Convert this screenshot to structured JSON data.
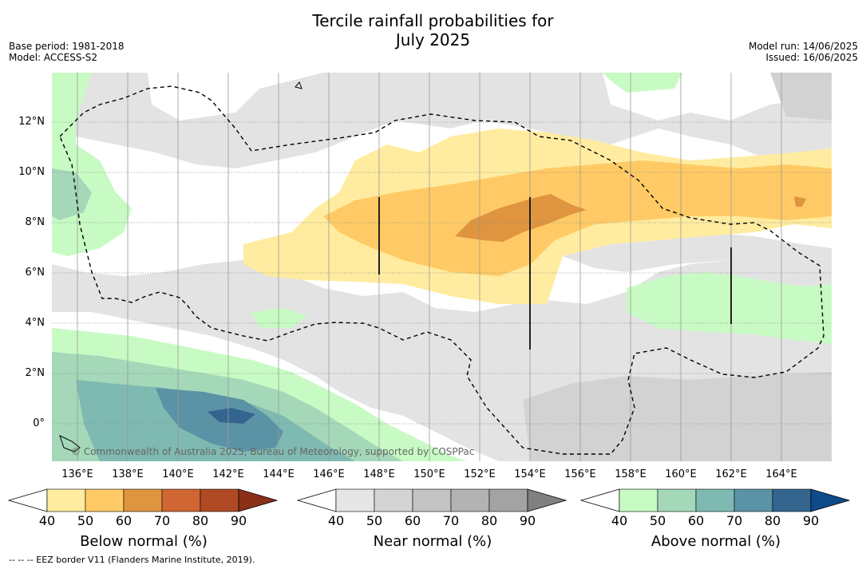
{
  "title_line1": "Tercile rainfall probabilities for",
  "title_line2": "July 2025",
  "meta": {
    "base_period": "Base period: 1981-2018",
    "model": "Model: ACCESS-S2",
    "model_run": "Model run: 14/06/2025",
    "issued": "Issued: 16/06/2025"
  },
  "map": {
    "lat_labels": [
      "12°N",
      "10°N",
      "8°N",
      "6°N",
      "4°N",
      "2°N",
      "0°"
    ],
    "lon_labels": [
      "136°E",
      "138°E",
      "140°E",
      "142°E",
      "144°E",
      "146°E",
      "148°E",
      "150°E",
      "152°E",
      "154°E",
      "156°E",
      "158°E",
      "160°E",
      "162°E",
      "164°E"
    ],
    "copyright": "© Commonwealth of Australia 2025, Bureau of Meteorology, supported by COSPPac"
  },
  "colorbars": [
    {
      "title": "Below normal (%)",
      "ticks": [
        "40",
        "50",
        "60",
        "70",
        "80",
        "90"
      ],
      "colors": [
        "#ffffff",
        "#ffeca0",
        "#ffca65",
        "#df9440",
        "#cf6633",
        "#b04a25",
        "#8a3018"
      ]
    },
    {
      "title": "Near normal (%)",
      "ticks": [
        "40",
        "50",
        "60",
        "70",
        "80",
        "90"
      ],
      "colors": [
        "#ffffff",
        "#e6e6e6",
        "#d4d4d4",
        "#c3c3c3",
        "#b3b3b3",
        "#a3a3a3",
        "#808080"
      ]
    },
    {
      "title": "Above normal (%)",
      "ticks": [
        "40",
        "50",
        "60",
        "70",
        "80",
        "90"
      ],
      "colors": [
        "#ffffff",
        "#c8fbc4",
        "#a4d8b8",
        "#7ebab1",
        "#5b93a6",
        "#33658f",
        "#0f4a8a"
      ]
    }
  ],
  "footnote": "--  --  -- EEZ border V11 (Flanders Marine Institute, 2019)."
}
